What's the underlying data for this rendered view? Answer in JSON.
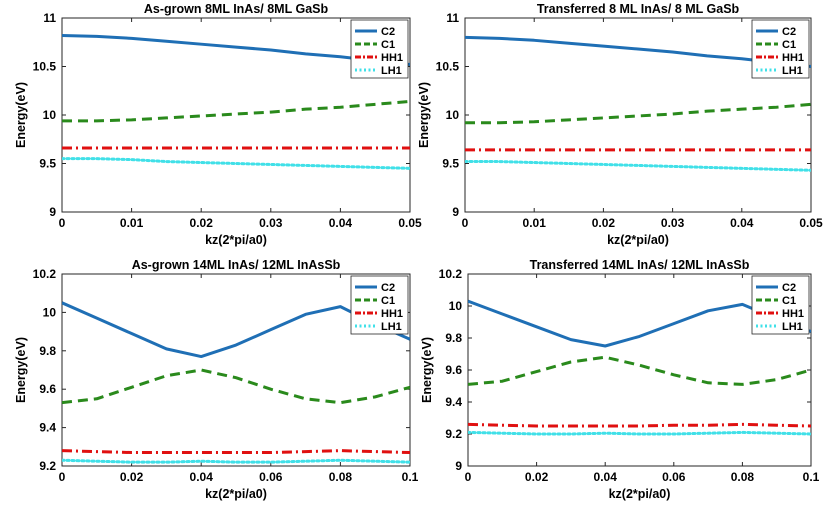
{
  "colors": {
    "C2": "#1f6fb5",
    "C1": "#2a8a1c",
    "HH1": "#e01010",
    "LH1": "#40e0e8"
  },
  "chart_data": [
    {
      "type": "line",
      "title": "As-grown 8ML InAs/ 8ML GaSb",
      "xlabel": "kz(2*pi/a0)",
      "ylabel": "Energy(eV)",
      "xlim": [
        0,
        0.05
      ],
      "ylim": [
        9,
        11
      ],
      "xticks": [
        0,
        0.01,
        0.02,
        0.03,
        0.04,
        0.05
      ],
      "xtick_labels": [
        "0",
        "0.01",
        "0.02",
        "0.03",
        "0.04",
        "0.05"
      ],
      "yticks": [
        9,
        9.5,
        10,
        10.5,
        11
      ],
      "ytick_labels": [
        "9",
        "9.5",
        "10",
        "10.5",
        "11"
      ],
      "legend_placement": "top-right",
      "grid": false,
      "x": [
        0,
        0.005,
        0.01,
        0.015,
        0.02,
        0.025,
        0.03,
        0.035,
        0.04,
        0.045,
        0.05
      ],
      "series": [
        {
          "name": "C2",
          "style": "solid",
          "values": [
            10.82,
            10.81,
            10.79,
            10.76,
            10.73,
            10.7,
            10.67,
            10.63,
            10.6,
            10.56,
            10.52
          ]
        },
        {
          "name": "C1",
          "style": "dashed",
          "values": [
            9.94,
            9.94,
            9.95,
            9.97,
            9.99,
            10.01,
            10.03,
            10.06,
            10.08,
            10.11,
            10.14
          ]
        },
        {
          "name": "HH1",
          "style": "dashdot",
          "values": [
            9.66,
            9.66,
            9.66,
            9.66,
            9.66,
            9.66,
            9.66,
            9.66,
            9.66,
            9.66,
            9.66
          ]
        },
        {
          "name": "LH1",
          "style": "dotted",
          "values": [
            9.55,
            9.55,
            9.54,
            9.52,
            9.51,
            9.5,
            9.49,
            9.48,
            9.47,
            9.46,
            9.45
          ]
        }
      ]
    },
    {
      "type": "line",
      "title": "Transferred 8 ML InAs/ 8 ML GaSb",
      "xlabel": "kz(2*pi/a0)",
      "ylabel": "Energy(eV)",
      "xlim": [
        0,
        0.05
      ],
      "ylim": [
        9,
        11
      ],
      "xticks": [
        0,
        0.01,
        0.02,
        0.03,
        0.04,
        0.05
      ],
      "xtick_labels": [
        "0",
        "0.01",
        "0.02",
        "0.03",
        "0.04",
        "0.05"
      ],
      "yticks": [
        9,
        9.5,
        10,
        10.5,
        11
      ],
      "ytick_labels": [
        "9",
        "9.5",
        "10",
        "10.5",
        "11"
      ],
      "legend_placement": "top-right",
      "grid": false,
      "x": [
        0,
        0.005,
        0.01,
        0.015,
        0.02,
        0.025,
        0.03,
        0.035,
        0.04,
        0.045,
        0.05
      ],
      "series": [
        {
          "name": "C2",
          "style": "solid",
          "values": [
            10.8,
            10.79,
            10.77,
            10.74,
            10.71,
            10.68,
            10.65,
            10.61,
            10.58,
            10.54,
            10.5
          ]
        },
        {
          "name": "C1",
          "style": "dashed",
          "values": [
            9.92,
            9.92,
            9.93,
            9.95,
            9.97,
            9.99,
            10.01,
            10.04,
            10.06,
            10.08,
            10.11
          ]
        },
        {
          "name": "HH1",
          "style": "dashdot",
          "values": [
            9.64,
            9.64,
            9.64,
            9.64,
            9.64,
            9.64,
            9.64,
            9.64,
            9.64,
            9.64,
            9.64
          ]
        },
        {
          "name": "LH1",
          "style": "dotted",
          "values": [
            9.52,
            9.52,
            9.51,
            9.5,
            9.49,
            9.48,
            9.47,
            9.46,
            9.45,
            9.44,
            9.43
          ]
        }
      ]
    },
    {
      "type": "line",
      "title": "As-grown 14ML InAs/ 12ML InAsSb",
      "xlabel": "kz(2*pi/a0)",
      "ylabel": "Energy(eV)",
      "xlim": [
        0,
        0.1
      ],
      "ylim": [
        9.2,
        10.2
      ],
      "xticks": [
        0,
        0.02,
        0.04,
        0.06,
        0.08,
        0.1
      ],
      "xtick_labels": [
        "0",
        "0.02",
        "0.04",
        "0.06",
        "0.08",
        "0.1"
      ],
      "yticks": [
        9.2,
        9.4,
        9.6,
        9.8,
        10,
        10.2
      ],
      "ytick_labels": [
        "9.2",
        "9.4",
        "9.6",
        "9.8",
        "10",
        "10.2"
      ],
      "legend_placement": "top-right",
      "grid": false,
      "x": [
        0,
        0.01,
        0.02,
        0.03,
        0.04,
        0.05,
        0.06,
        0.07,
        0.08,
        0.09,
        0.1
      ],
      "series": [
        {
          "name": "C2",
          "style": "solid",
          "values": [
            10.05,
            9.97,
            9.89,
            9.81,
            9.77,
            9.83,
            9.91,
            9.99,
            10.03,
            9.94,
            9.86
          ]
        },
        {
          "name": "C1",
          "style": "dashed",
          "values": [
            9.53,
            9.55,
            9.61,
            9.67,
            9.7,
            9.66,
            9.6,
            9.55,
            9.53,
            9.56,
            9.61
          ]
        },
        {
          "name": "HH1",
          "style": "dashdot",
          "values": [
            9.28,
            9.275,
            9.27,
            9.27,
            9.27,
            9.27,
            9.27,
            9.275,
            9.28,
            9.275,
            9.27
          ]
        },
        {
          "name": "LH1",
          "style": "dotted",
          "values": [
            9.23,
            9.225,
            9.22,
            9.22,
            9.225,
            9.22,
            9.22,
            9.225,
            9.23,
            9.225,
            9.22
          ]
        }
      ]
    },
    {
      "type": "line",
      "title": "Transferred 14ML InAs/ 12ML InAsSb",
      "xlabel": "kz(2*pi/a0)",
      "ylabel": "Energy(eV)",
      "xlim": [
        0,
        0.1
      ],
      "ylim": [
        9,
        10.2
      ],
      "xticks": [
        0,
        0.02,
        0.04,
        0.06,
        0.08,
        0.1
      ],
      "xtick_labels": [
        "0",
        "0.02",
        "0.04",
        "0.06",
        "0.08",
        "0.1"
      ],
      "yticks": [
        9,
        9.2,
        9.4,
        9.6,
        9.8,
        10,
        10.2
      ],
      "ytick_labels": [
        "9",
        "9.2",
        "9.4",
        "9.6",
        "9.8",
        "10",
        "10.2"
      ],
      "legend_placement": "top-right",
      "grid": false,
      "x": [
        0,
        0.01,
        0.02,
        0.03,
        0.04,
        0.05,
        0.06,
        0.07,
        0.08,
        0.09,
        0.1
      ],
      "series": [
        {
          "name": "C2",
          "style": "solid",
          "values": [
            10.03,
            9.95,
            9.87,
            9.79,
            9.75,
            9.81,
            9.89,
            9.97,
            10.01,
            9.92,
            9.84
          ]
        },
        {
          "name": "C1",
          "style": "dashed",
          "values": [
            9.51,
            9.53,
            9.59,
            9.65,
            9.68,
            9.63,
            9.57,
            9.52,
            9.51,
            9.54,
            9.6
          ]
        },
        {
          "name": "HH1",
          "style": "dashdot",
          "values": [
            9.26,
            9.255,
            9.25,
            9.25,
            9.25,
            9.25,
            9.255,
            9.255,
            9.26,
            9.255,
            9.25
          ]
        },
        {
          "name": "LH1",
          "style": "dotted",
          "values": [
            9.21,
            9.205,
            9.2,
            9.2,
            9.205,
            9.2,
            9.2,
            9.205,
            9.21,
            9.205,
            9.2
          ]
        }
      ]
    }
  ]
}
